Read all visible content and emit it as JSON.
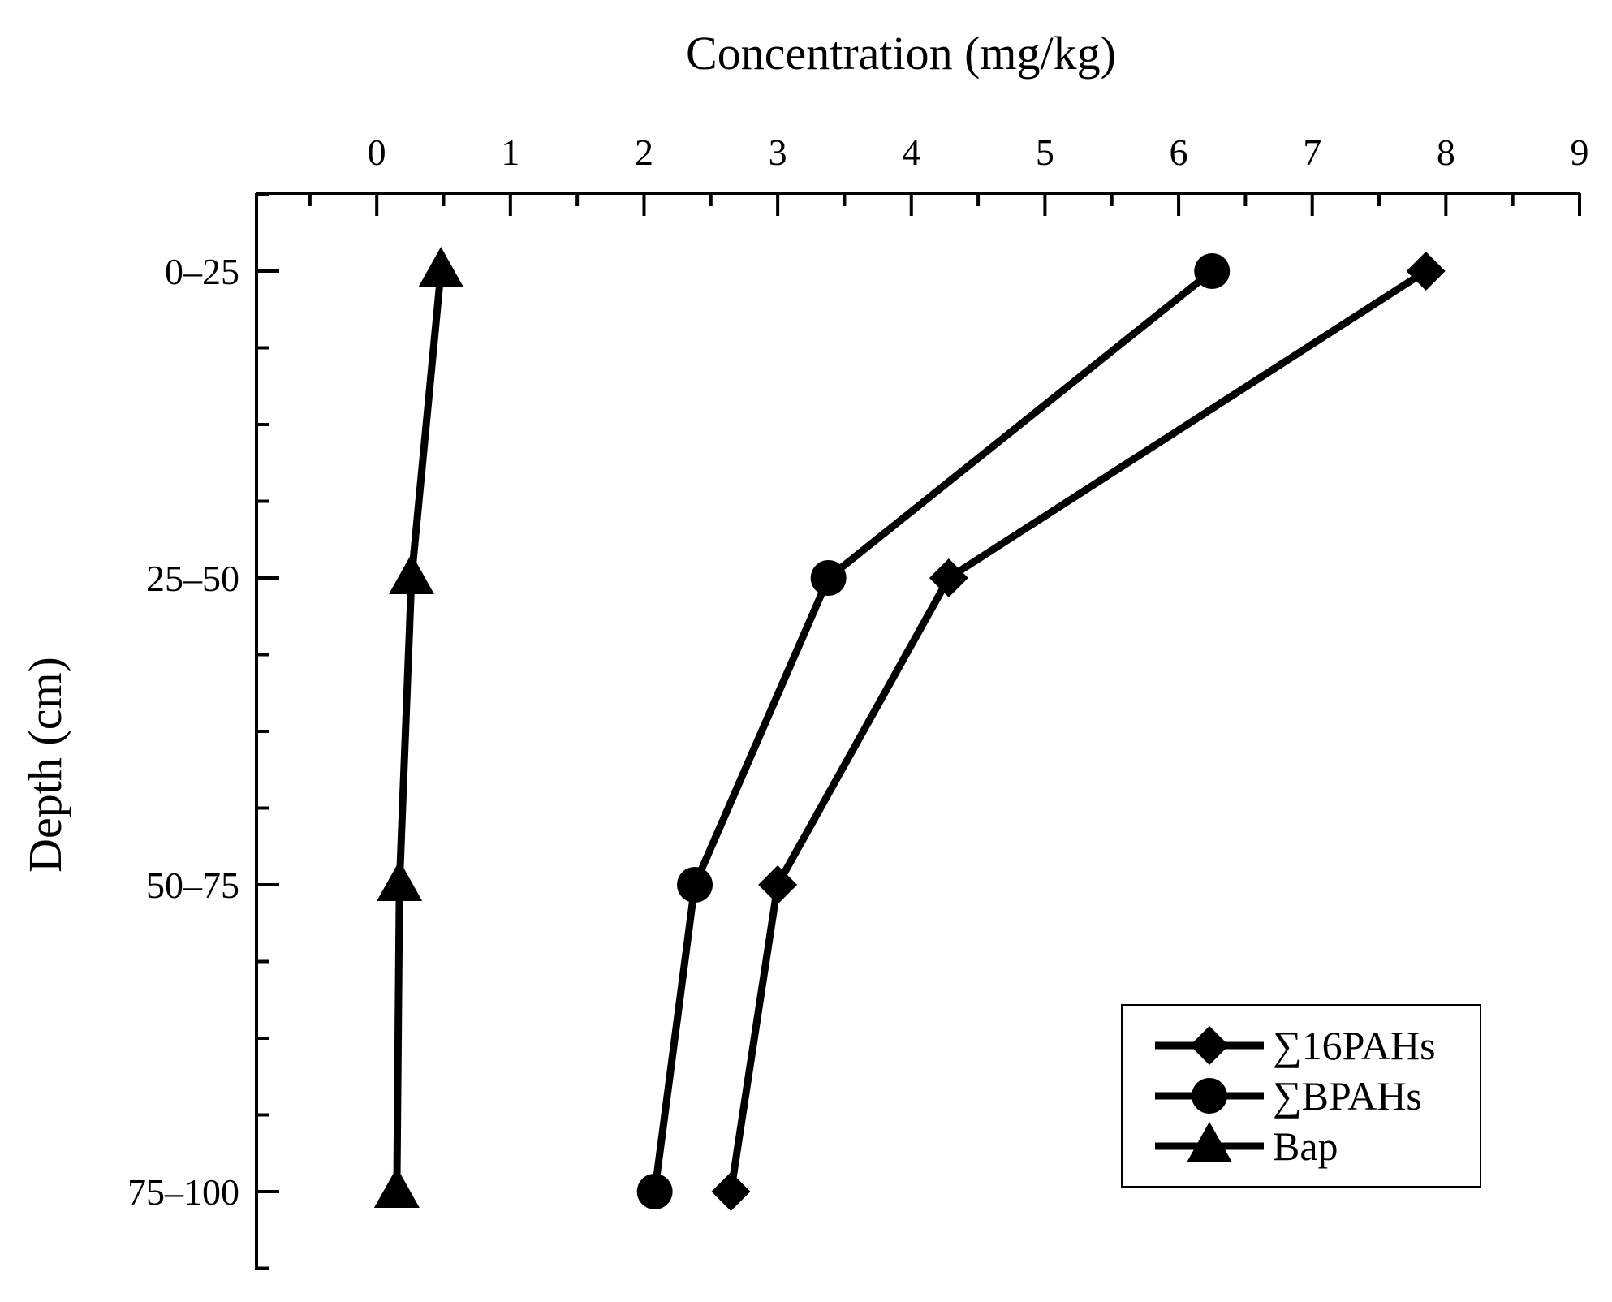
{
  "chart_data": {
    "type": "line",
    "title": "",
    "xlabel": "Concentration (mg/kg)",
    "ylabel": "Depth (cm)",
    "xlim": [
      -0.9,
      9
    ],
    "x_ticks": [
      0,
      1,
      2,
      3,
      4,
      5,
      6,
      7,
      8,
      9
    ],
    "x_axis_position": "top",
    "categories": [
      "0–25",
      "25–50",
      "50–75",
      "75–100"
    ],
    "y_order": "top-to-bottom",
    "grid": false,
    "legend_position": "bottom-right",
    "series": [
      {
        "name": "∑16PAHs",
        "marker": "diamond",
        "values": [
          7.85,
          4.28,
          3.0,
          2.65
        ]
      },
      {
        "name": "∑BPAHs",
        "marker": "circle",
        "values": [
          6.25,
          3.38,
          2.38,
          2.08
        ]
      },
      {
        "name": "Bap",
        "marker": "triangle",
        "values": [
          0.48,
          0.26,
          0.17,
          0.15
        ]
      }
    ]
  },
  "colors": {
    "line": "#000000",
    "background": "#ffffff"
  }
}
